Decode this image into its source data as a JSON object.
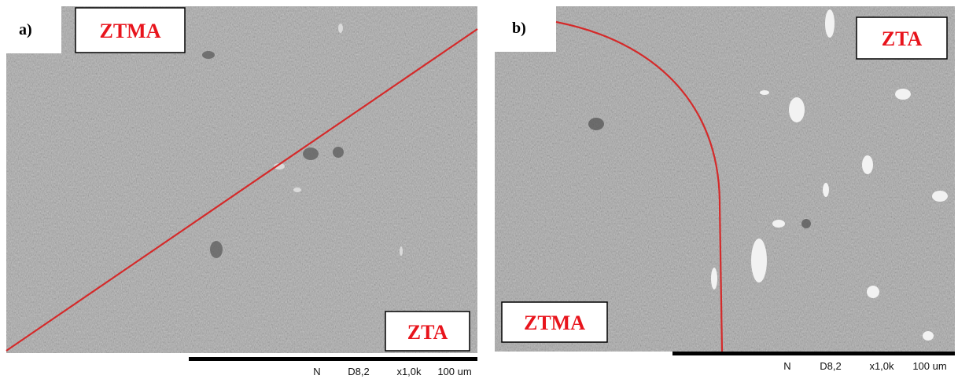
{
  "panels": [
    {
      "label": "a)",
      "regions": [
        "ZTMA",
        "ZTA"
      ],
      "scale_bar": [
        "N",
        "D8,2",
        "x1,0k",
        "100 um"
      ]
    },
    {
      "label": "b)",
      "regions": [
        "ZTA",
        "ZTMA"
      ],
      "scale_bar": [
        "N",
        "D8,2",
        "x1,0k",
        "100 um"
      ]
    }
  ]
}
